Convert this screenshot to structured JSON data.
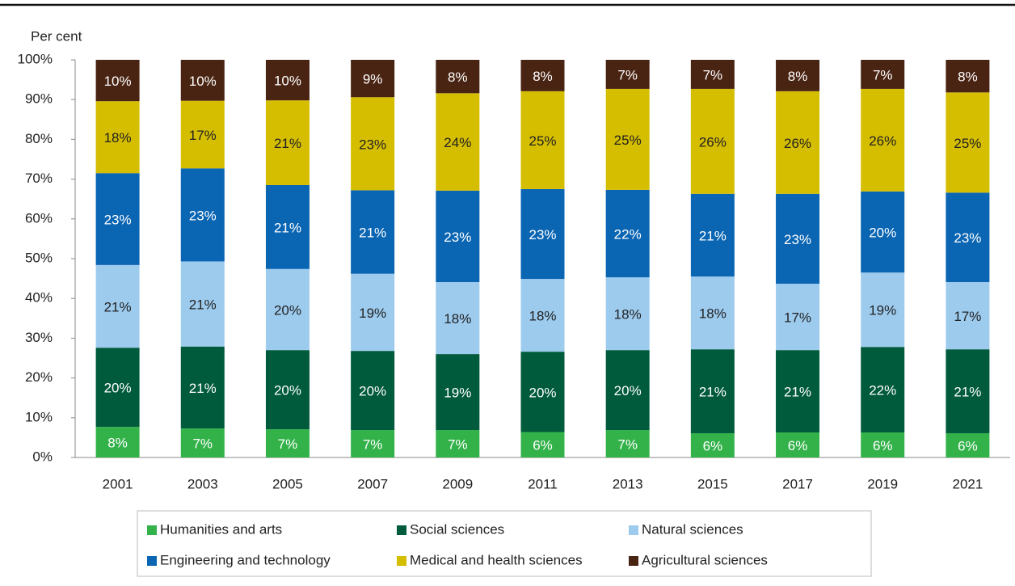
{
  "chart_data": {
    "type": "bar",
    "stacked": true,
    "y_label": "Per cent",
    "categories": [
      "2001",
      "2003",
      "2005",
      "2007",
      "2009",
      "2011",
      "2013",
      "2015",
      "2017",
      "2019",
      "2021"
    ],
    "ylim": [
      0,
      100
    ],
    "yticks": [
      {
        "value": 0,
        "label": "0%"
      },
      {
        "value": 10,
        "label": "10%"
      },
      {
        "value": 20,
        "label": "20%"
      },
      {
        "value": 30,
        "label": "30%"
      },
      {
        "value": 40,
        "label": "40%"
      },
      {
        "value": 50,
        "label": "50%"
      },
      {
        "value": 60,
        "label": "60%"
      },
      {
        "value": 70,
        "label": "70%"
      },
      {
        "value": 80,
        "label": "80%"
      },
      {
        "value": 90,
        "label": "90%"
      },
      {
        "value": 100,
        "label": "100%"
      }
    ],
    "series": [
      {
        "name": "Humanities and arts",
        "color": "#33b24a",
        "values": [
          7.7,
          7.3,
          7.1,
          6.9,
          6.9,
          6.4,
          6.9,
          6.1,
          6.3,
          6.3,
          6.1
        ],
        "value_labels": [
          "8%",
          "7%",
          "7%",
          "7%",
          "7%",
          "6%",
          "7%",
          "6%",
          "6%",
          "6%",
          "6%"
        ]
      },
      {
        "name": "Social sciences",
        "color": "#005a3c",
        "values": [
          19.9,
          20.6,
          19.9,
          19.9,
          19.1,
          20.2,
          20.1,
          21.1,
          20.7,
          21.5,
          21.1
        ],
        "value_labels": [
          "20%",
          "21%",
          "20%",
          "20%",
          "19%",
          "20%",
          "20%",
          "21%",
          "21%",
          "22%",
          "21%"
        ]
      },
      {
        "name": "Natural sciences",
        "color": "#9dcbee",
        "values": [
          20.8,
          21.4,
          20.4,
          19.4,
          18.1,
          18.3,
          18.3,
          18.3,
          16.7,
          18.7,
          16.9
        ],
        "value_labels": [
          "21%",
          "21%",
          "20%",
          "19%",
          "18%",
          "18%",
          "18%",
          "18%",
          "17%",
          "19%",
          "17%"
        ]
      },
      {
        "name": "Engineering and technology",
        "color": "#0a65b3",
        "values": [
          23.1,
          23.4,
          21.1,
          21.0,
          23.0,
          22.6,
          22.0,
          20.8,
          22.6,
          20.4,
          22.5
        ],
        "value_labels": [
          "23%",
          "23%",
          "21%",
          "21%",
          "23%",
          "23%",
          "22%",
          "21%",
          "23%",
          "20%",
          "23%"
        ]
      },
      {
        "name": "Medical and health sciences",
        "color": "#d5bd00",
        "values": [
          18.1,
          17.0,
          21.3,
          23.4,
          24.5,
          24.6,
          25.4,
          26.4,
          25.8,
          25.8,
          25.2
        ],
        "value_labels": [
          "18%",
          "17%",
          "21%",
          "23%",
          "24%",
          "25%",
          "25%",
          "26%",
          "26%",
          "26%",
          "25%"
        ]
      },
      {
        "name": "Agricultural sciences",
        "color": "#4a2413",
        "values": [
          10.4,
          10.3,
          10.2,
          9.4,
          8.4,
          7.9,
          7.3,
          7.3,
          7.9,
          7.3,
          8.2
        ],
        "value_labels": [
          "10%",
          "10%",
          "10%",
          "9%",
          "8%",
          "8%",
          "7%",
          "7%",
          "8%",
          "7%",
          "8%"
        ]
      }
    ]
  }
}
